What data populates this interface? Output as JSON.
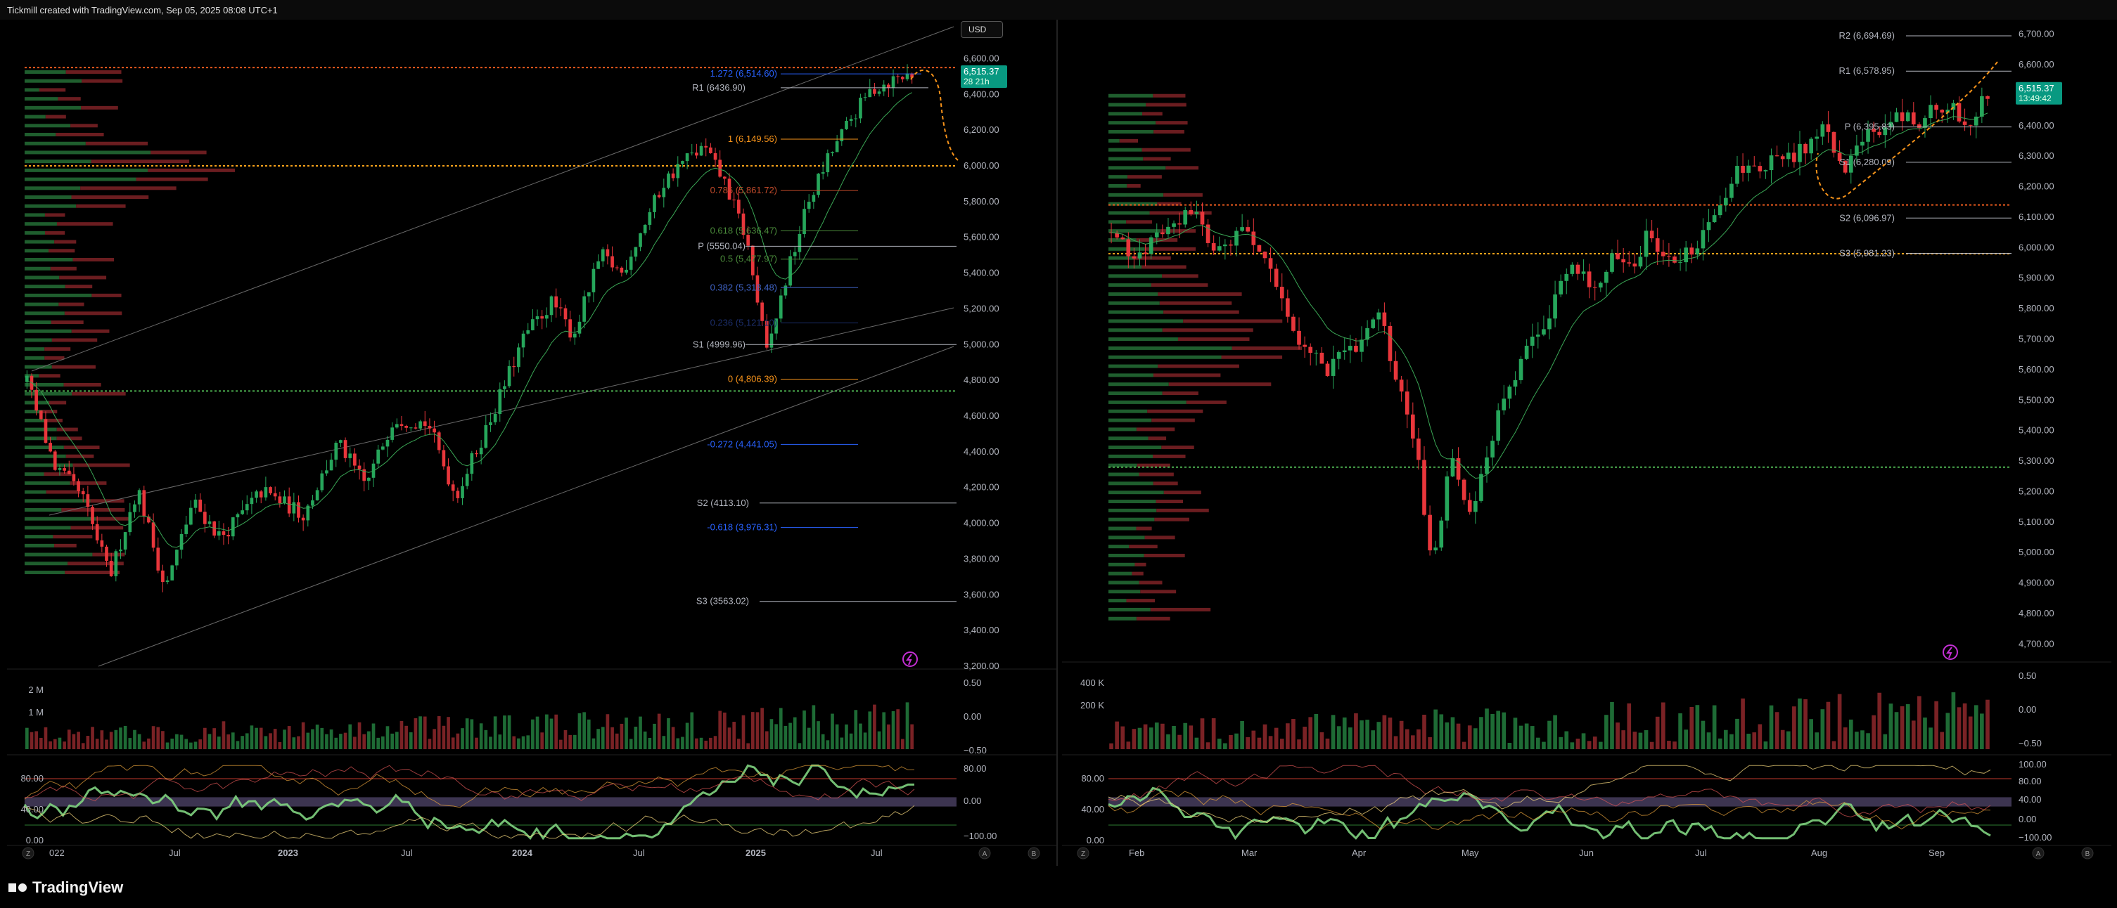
{
  "header": {
    "credit": "Tickmill created with TradingView.com, Sep 05, 2025 08:08 UTC+1"
  },
  "footer": {
    "logo_text": "TradingView"
  },
  "colors": {
    "up": "#26a65b",
    "down": "#e8363b",
    "fib_orange": "#f7931a",
    "fib_blue": "#2962ff",
    "fib_green": "#4caf50",
    "pivot": "#b2b5be",
    "price_badge": "#089981",
    "bg": "#000000"
  },
  "left": {
    "currency_button": "USD",
    "price_axis": [
      "6,600.00",
      "6,400.00",
      "6,200.00",
      "6,000.00",
      "5,800.00",
      "5,600.00",
      "5,400.00",
      "5,200.00",
      "5,000.00",
      "4,800.00",
      "4,600.00",
      "4,400.00",
      "4,200.00",
      "4,000.00",
      "3,800.00",
      "3,600.00",
      "3,400.00",
      "3,200.00"
    ],
    "price_badge": {
      "price": "6,515.37",
      "countdown": "28 21h"
    },
    "time_axis": [
      "022",
      "Jul",
      "2023",
      "Jul",
      "2024",
      "Jul",
      "2025",
      "Jul"
    ],
    "volume_axis": [
      "2 M",
      "1 M"
    ],
    "volume_right_axis": [
      "0.50",
      "0.00",
      "−0.50"
    ],
    "osc_axis": [
      "80.00",
      "40.00",
      "0.00"
    ],
    "osc_right_axis": [
      "80.00",
      "0.00",
      "−100.00"
    ],
    "labels": {
      "r1": "R1 (6436.90)",
      "fib_1272": "1.272 (6,514.60)",
      "fib_1": "1 (6,149.56)",
      "fib_786": "0.786 (5,861.72)",
      "fib_618": "0.618 (5,636.47)",
      "fib_5": "0.5 (5,477.97)",
      "fib_382": "0.382 (5,318.48)",
      "fib_236": "0.236 (5,121.10)",
      "fib_0": "0 (4,806.39)",
      "fib_m272": "-0.272 (4,441.05)",
      "fib_m618": "-0.618 (3,976.31)",
      "p": "P (5550.04)",
      "s1": "S1 (4999.96)",
      "s2": "S2 (4113.10)",
      "s3": "S3 (3563.02)"
    },
    "footer_buttons": [
      "Z",
      "A",
      "B"
    ]
  },
  "right": {
    "price_axis": [
      "6,700.00",
      "6,600.00",
      "6,500.00",
      "6,400.00",
      "6,300.00",
      "6,200.00",
      "6,100.00",
      "6,000.00",
      "5,900.00",
      "5,800.00",
      "5,700.00",
      "5,600.00",
      "5,500.00",
      "5,400.00",
      "5,300.00",
      "5,200.00",
      "5,100.00",
      "5,000.00",
      "4,900.00",
      "4,800.00",
      "4,700.00"
    ],
    "price_badge": {
      "price": "6,515.37",
      "countdown": "13:49:42"
    },
    "time_axis": [
      "Feb",
      "Mar",
      "Apr",
      "May",
      "Jun",
      "Jul",
      "Aug",
      "Sep"
    ],
    "volume_axis": [
      "400 K",
      "200 K"
    ],
    "volume_right_axis": [
      "0.50",
      "0.00",
      "−0.50"
    ],
    "osc_axis": [
      "80.00",
      "40.00",
      "0.00"
    ],
    "osc_right_axis": [
      "100.00",
      "80.00",
      "40.00",
      "0.00",
      "−100.00"
    ],
    "labels": {
      "r2": "R2 (6,694.69)",
      "r1": "R1 (6,578.95)",
      "p": "P (6,395.83)",
      "s1": "S1 (6,280.09)",
      "s2": "S2 (6,096.97)",
      "s3": "S3 (5,981.23)"
    },
    "footer_buttons": [
      "Z",
      "A",
      "B"
    ]
  },
  "chart_data": [
    {
      "type": "candlestick",
      "instrument": "",
      "timeframe": "weekly",
      "x_range": [
        "2022-01",
        "2025-09"
      ],
      "ylim": [
        3200,
        6700
      ],
      "last_price": 6515.37,
      "path": [
        [
          0,
          4790
        ],
        [
          0.04,
          4320
        ],
        [
          0.08,
          4150
        ],
        [
          0.12,
          3700
        ],
        [
          0.16,
          4200
        ],
        [
          0.2,
          3630
        ],
        [
          0.24,
          4120
        ],
        [
          0.28,
          3920
        ],
        [
          0.34,
          4180
        ],
        [
          0.4,
          4050
        ],
        [
          0.45,
          4450
        ],
        [
          0.49,
          4210
        ],
        [
          0.53,
          4590
        ],
        [
          0.58,
          4560
        ],
        [
          0.62,
          4150
        ],
        [
          0.67,
          4580
        ],
        [
          0.72,
          5050
        ],
        [
          0.76,
          5240
        ],
        [
          0.79,
          5050
        ],
        [
          0.83,
          5500
        ],
        [
          0.86,
          5400
        ],
        [
          0.89,
          5650
        ],
        [
          0.92,
          5900
        ],
        [
          0.95,
          6030
        ],
        [
          0.98,
          6100
        ],
        [
          1.01,
          5900
        ],
        [
          1.04,
          5600
        ],
        [
          1.07,
          4950
        ],
        [
          1.1,
          5400
        ],
        [
          1.13,
          5800
        ],
        [
          1.16,
          6050
        ],
        [
          1.19,
          6250
        ],
        [
          1.22,
          6420
        ],
        [
          1.25,
          6480
        ],
        [
          1.28,
          6515
        ]
      ],
      "pivots": {
        "R1": 6436.9,
        "P": 5550.04,
        "S1": 4999.96,
        "S2": 4113.1,
        "S3": 3563.02
      },
      "fibonacci": {
        "1.272": 6514.6,
        "1": 6149.56,
        "0.786": 5861.72,
        "0.618": 5636.47,
        "0.5": 5477.97,
        "0.382": 5318.48,
        "0.236": 5121.1,
        "0": 4806.39,
        "-0.272": 4441.05,
        "-0.618": 3976.31
      },
      "horizontal_levels": [
        6550,
        6000,
        4740
      ]
    },
    {
      "type": "candlestick",
      "instrument": "",
      "timeframe": "daily",
      "x_range": [
        "2025-01",
        "2025-09"
      ],
      "ylim": [
        4650,
        6720
      ],
      "last_price": 6515.37,
      "path": [
        [
          0,
          6050
        ],
        [
          0.03,
          5950
        ],
        [
          0.06,
          6080
        ],
        [
          0.09,
          6120
        ],
        [
          0.12,
          5980
        ],
        [
          0.15,
          6070
        ],
        [
          0.18,
          5900
        ],
        [
          0.21,
          5700
        ],
        [
          0.24,
          5600
        ],
        [
          0.27,
          5670
        ],
        [
          0.3,
          5780
        ],
        [
          0.32,
          5550
        ],
        [
          0.34,
          5350
        ],
        [
          0.36,
          4950
        ],
        [
          0.38,
          5350
        ],
        [
          0.4,
          5100
        ],
        [
          0.42,
          5300
        ],
        [
          0.44,
          5520
        ],
        [
          0.47,
          5680
        ],
        [
          0.5,
          5850
        ],
        [
          0.52,
          5950
        ],
        [
          0.54,
          5850
        ],
        [
          0.56,
          5980
        ],
        [
          0.58,
          5920
        ],
        [
          0.6,
          6050
        ],
        [
          0.62,
          5980
        ],
        [
          0.64,
          5970
        ],
        [
          0.66,
          6020
        ],
        [
          0.68,
          6150
        ],
        [
          0.7,
          6250
        ],
        [
          0.72,
          6260
        ],
        [
          0.74,
          6280
        ],
        [
          0.76,
          6300
        ],
        [
          0.78,
          6340
        ],
        [
          0.8,
          6390
        ],
        [
          0.82,
          6240
        ],
        [
          0.84,
          6350
        ],
        [
          0.86,
          6390
        ],
        [
          0.88,
          6450
        ],
        [
          0.9,
          6390
        ],
        [
          0.92,
          6470
        ],
        [
          0.94,
          6450
        ],
        [
          0.96,
          6420
        ],
        [
          0.98,
          6515
        ]
      ],
      "pivots": {
        "R2": 6694.69,
        "R1": 6578.95,
        "P": 6395.83,
        "S1": 6280.09,
        "S2": 6096.97,
        "S3": 5981.23
      },
      "horizontal_levels": [
        6140,
        5980,
        5280
      ]
    }
  ]
}
